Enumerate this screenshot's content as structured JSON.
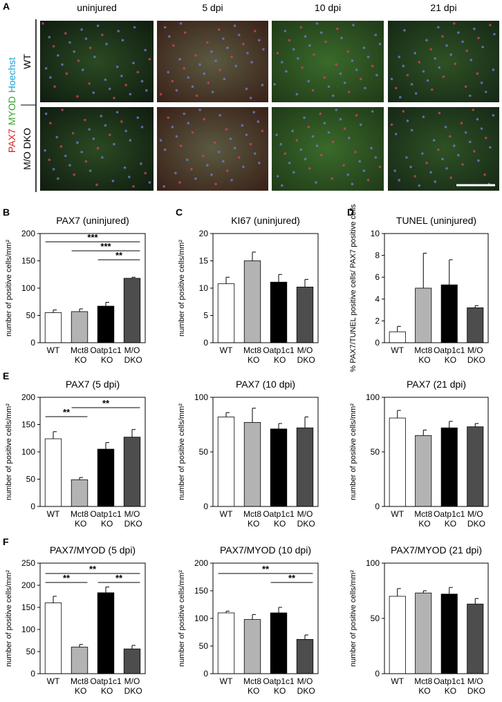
{
  "panel_a": {
    "label": "A",
    "columns": [
      "uninjured",
      "5 dpi",
      "10 dpi",
      "21 dpi"
    ],
    "rows": [
      "WT",
      "M/O DKO"
    ],
    "stains": [
      {
        "text": "PAX7",
        "color": "#d62020"
      },
      {
        "text": "MYOD",
        "color": "#3aa030"
      },
      {
        "text": "Hoechst",
        "color": "#1aa0d8"
      }
    ]
  },
  "chart_data": [
    {
      "type": "bar",
      "panel": "B",
      "title": "PAX7 (uninjured)",
      "y_label": "number of positive cells/mm²",
      "categories": [
        "WT",
        "Mct8 KO",
        "Oatp1c1 KO",
        "M/O DKO"
      ],
      "values": [
        55,
        57,
        67,
        118
      ],
      "errors": [
        5,
        5,
        7,
        2
      ],
      "colors": [
        "#ffffff",
        "#b3b3b3",
        "#000000",
        "#4d4d4d"
      ],
      "ylim": [
        0,
        200
      ],
      "yticks": [
        0,
        50,
        100,
        150,
        200
      ],
      "annotations": [
        {
          "from": 0,
          "to": 3,
          "label": "***"
        },
        {
          "from": 1,
          "to": 3,
          "label": "***"
        },
        {
          "from": 2,
          "to": 3,
          "label": "**"
        }
      ]
    },
    {
      "type": "bar",
      "panel": "C",
      "title": "KI67 (uninjured)",
      "y_label": "number of positive cells/mm²",
      "categories": [
        "WT",
        "Mct8 KO",
        "Oatp1c1 KO",
        "M/O DKO"
      ],
      "values": [
        10.8,
        15,
        11.1,
        10.2
      ],
      "errors": [
        1.2,
        1.6,
        1.4,
        1.4
      ],
      "colors": [
        "#ffffff",
        "#b3b3b3",
        "#000000",
        "#4d4d4d"
      ],
      "ylim": [
        0,
        20
      ],
      "yticks": [
        0,
        5,
        10,
        15,
        20
      ],
      "annotations": []
    },
    {
      "type": "bar",
      "panel": "D",
      "title": "TUNEL (uninjured)",
      "y_label": "% PAX7/TUNEL positive cells/ PAX7 positive cells",
      "categories": [
        "WT",
        "Mct8 KO",
        "Oatp1c1 KO",
        "M/O DKO"
      ],
      "values": [
        1,
        5,
        5.3,
        3.2
      ],
      "errors": [
        0.5,
        3.2,
        2.3,
        0.2
      ],
      "colors": [
        "#ffffff",
        "#b3b3b3",
        "#000000",
        "#4d4d4d"
      ],
      "ylim": [
        0,
        10
      ],
      "yticks": [
        0,
        2,
        4,
        6,
        8,
        10
      ],
      "annotations": []
    },
    {
      "type": "bar",
      "panel": "E",
      "title": "PAX7 (5 dpi)",
      "y_label": "number of positive cells/mm²",
      "categories": [
        "WT",
        "Mct8 KO",
        "Oatp1c1 KO",
        "M/O DKO"
      ],
      "values": [
        124,
        49,
        105,
        127
      ],
      "errors": [
        13,
        4,
        12,
        14
      ],
      "colors": [
        "#ffffff",
        "#b3b3b3",
        "#000000",
        "#4d4d4d"
      ],
      "ylim": [
        0,
        200
      ],
      "yticks": [
        0,
        50,
        100,
        150,
        200
      ],
      "annotations": [
        {
          "from": 0,
          "to": 1,
          "label": "**"
        },
        {
          "from": 1,
          "to": 3,
          "label": "**"
        }
      ]
    },
    {
      "type": "bar",
      "title": "PAX7 (10 dpi)",
      "y_label": "number of positive cells/mm²",
      "categories": [
        "WT",
        "Mct8 KO",
        "Oatp1c1 KO",
        "M/O DKO"
      ],
      "values": [
        82,
        77,
        71,
        72
      ],
      "errors": [
        4,
        13,
        5,
        10
      ],
      "colors": [
        "#ffffff",
        "#b3b3b3",
        "#000000",
        "#4d4d4d"
      ],
      "ylim": [
        0,
        100
      ],
      "yticks": [
        0,
        50,
        100
      ],
      "annotations": []
    },
    {
      "type": "bar",
      "title": "PAX7 (21 dpi)",
      "y_label": "number of positive cells/mm²",
      "categories": [
        "WT",
        "Mct8 KO",
        "Oatp1c1 KO",
        "M/O DKO"
      ],
      "values": [
        81,
        65,
        72,
        73
      ],
      "errors": [
        7,
        5,
        6,
        3
      ],
      "colors": [
        "#ffffff",
        "#b3b3b3",
        "#000000",
        "#4d4d4d"
      ],
      "ylim": [
        0,
        100
      ],
      "yticks": [
        0,
        50,
        100
      ],
      "annotations": []
    },
    {
      "type": "bar",
      "panel": "F",
      "title": "PAX7/MYOD (5 dpi)",
      "y_label": "number of positive cells/mm²",
      "categories": [
        "WT",
        "Mct8 KO",
        "Oatp1c1 KO",
        "M/O DKO"
      ],
      "values": [
        160,
        60,
        183,
        56
      ],
      "errors": [
        15,
        6,
        13,
        8
      ],
      "colors": [
        "#ffffff",
        "#b3b3b3",
        "#000000",
        "#4d4d4d"
      ],
      "ylim": [
        0,
        250
      ],
      "yticks": [
        0,
        50,
        100,
        150,
        200,
        250
      ],
      "annotations": [
        {
          "from": 0,
          "to": 1,
          "label": "**"
        },
        {
          "from": 0,
          "to": 3,
          "label": "**"
        },
        {
          "from": 2,
          "to": 3,
          "label": "**"
        }
      ]
    },
    {
      "type": "bar",
      "title": "PAX7/MYOD (10 dpi)",
      "y_label": "number of positive cells/mm²",
      "categories": [
        "WT",
        "Mct8 KO",
        "Oatp1c1 KO",
        "M/O DKO"
      ],
      "values": [
        110,
        98,
        110,
        62
      ],
      "errors": [
        3,
        9,
        10,
        8
      ],
      "colors": [
        "#ffffff",
        "#b3b3b3",
        "#000000",
        "#4d4d4d"
      ],
      "ylim": [
        0,
        200
      ],
      "yticks": [
        0,
        50,
        100,
        150,
        200
      ],
      "annotations": [
        {
          "from": 0,
          "to": 3,
          "label": "**"
        },
        {
          "from": 2,
          "to": 3,
          "label": "**"
        }
      ]
    },
    {
      "type": "bar",
      "title": "PAX7/MYOD (21 dpi)",
      "y_label": "number of positive cells/mm²",
      "categories": [
        "WT",
        "Mct8 KO",
        "Oatp1c1 KO",
        "M/O DKO"
      ],
      "values": [
        70,
        73,
        72,
        63
      ],
      "errors": [
        7,
        2,
        6,
        5
      ],
      "colors": [
        "#ffffff",
        "#b3b3b3",
        "#000000",
        "#4d4d4d"
      ],
      "ylim": [
        0,
        100
      ],
      "yticks": [
        0,
        50,
        100
      ],
      "annotations": []
    }
  ]
}
